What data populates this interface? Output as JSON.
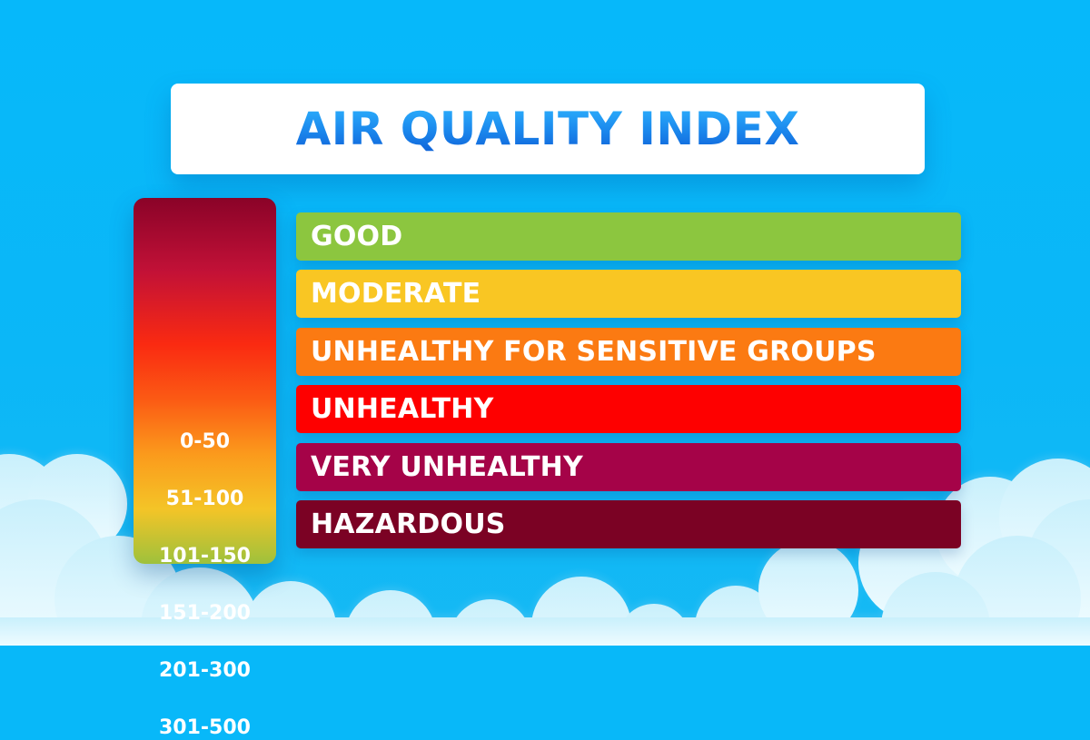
{
  "title": "AIR QUALITY INDEX",
  "colors": {
    "sky": "#08b8f9",
    "cloud": "#dff6fd",
    "title_text": "#1a86ec"
  },
  "ranges": [
    {
      "label": "0-50"
    },
    {
      "label": "51-100"
    },
    {
      "label": "101-150"
    },
    {
      "label": "151-200"
    },
    {
      "label": "201-300"
    },
    {
      "label": "301-500"
    }
  ],
  "levels": [
    {
      "label": "GOOD",
      "color": "#8cc63f"
    },
    {
      "label": "MODERATE",
      "color": "#f9c623"
    },
    {
      "label": "UNHEALTHY FOR SENSITIVE GROUPS",
      "color": "#fb7a12"
    },
    {
      "label": "UNHEALTHY",
      "color": "#fe0000"
    },
    {
      "label": "VERY UNHEALTHY",
      "color": "#a50348"
    },
    {
      "label": "HAZARDOUS",
      "color": "#7b0224"
    }
  ]
}
